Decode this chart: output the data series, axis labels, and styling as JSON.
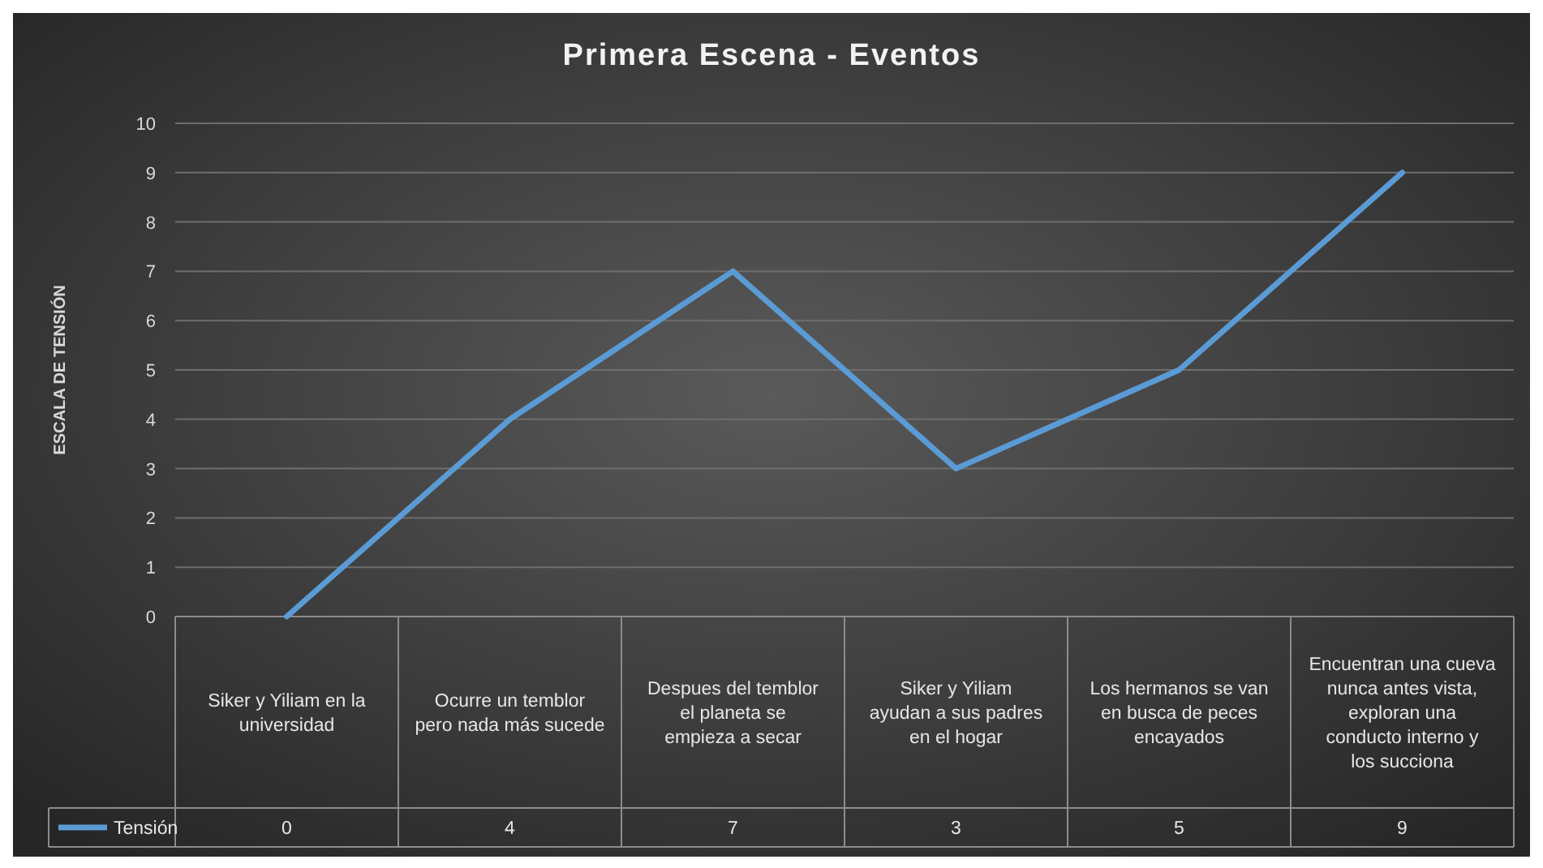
{
  "chart_data": {
    "type": "line",
    "title": "Primera Escena - Eventos",
    "ylabel": "ESCALA DE TENSIÓN",
    "categories": [
      "Siker y Yiliam en la universidad",
      "Ocurre un temblor pero nada más sucede",
      "Despues del temblor el planeta se empieza a secar",
      "Siker y Yiliam ayudan a sus padres en el hogar",
      "Los hermanos se van en busca de peces encayados",
      "Encuentran una cueva nunca antes vista, exploran una conducto interno y los succiona"
    ],
    "series": [
      {
        "name": "Tensión",
        "color": "#5b9bd5",
        "values": [
          0,
          4,
          7,
          3,
          5,
          9
        ]
      }
    ],
    "ylim": [
      0,
      10
    ],
    "yticks": [
      0,
      1,
      2,
      3,
      4,
      5,
      6,
      7,
      8,
      9,
      10
    ],
    "grid": "y",
    "legend": "bottom",
    "data_labels": true
  }
}
